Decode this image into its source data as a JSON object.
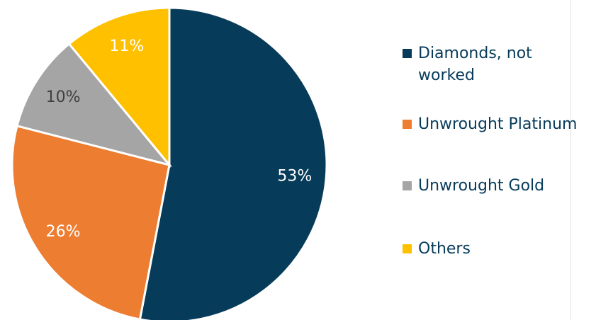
{
  "chart_data": {
    "type": "pie",
    "categories": [
      "Diamonds, not worked",
      "Unwrought Platinum",
      "Unwrought Gold",
      "Others"
    ],
    "values": [
      53,
      26,
      10,
      11
    ],
    "value_labels": [
      "53%",
      "26%",
      "10%",
      "11%"
    ],
    "colors": [
      "#073b5a",
      "#ed7d31",
      "#a5a5a5",
      "#ffc000"
    ],
    "legend": "right"
  }
}
